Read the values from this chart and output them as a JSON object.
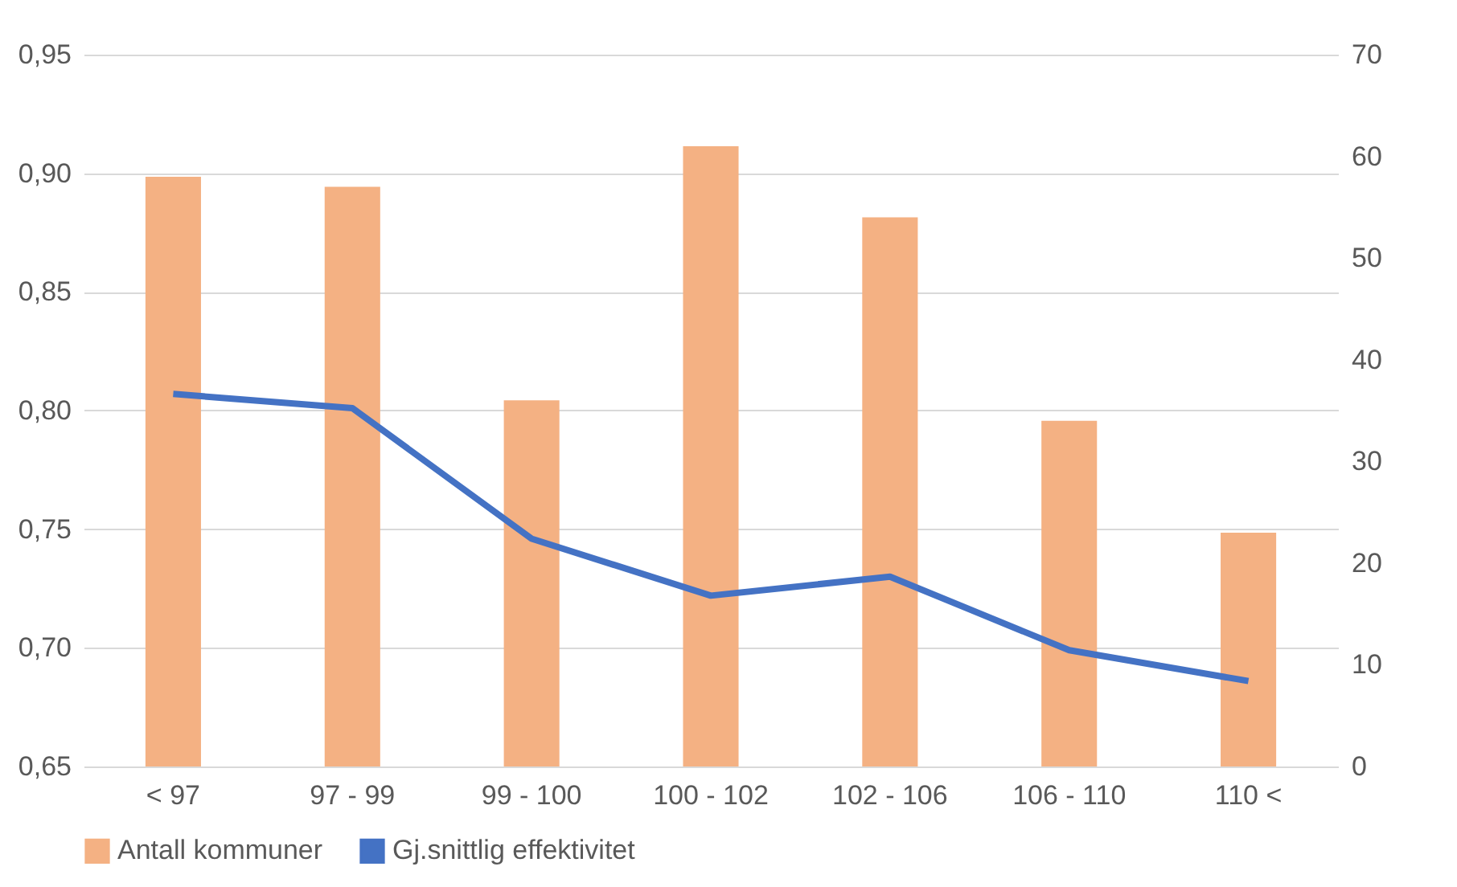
{
  "chart_data": {
    "type": "bar",
    "categories": [
      "< 97",
      "97 - 99",
      "99 - 100",
      "100 - 102",
      "102 - 106",
      "106 - 110",
      "110 <"
    ],
    "series": [
      {
        "name": "Antall kommuner",
        "axis": "y2",
        "color": "#f4b183",
        "values": [
          58,
          57,
          36,
          61,
          54,
          34,
          23
        ]
      },
      {
        "name": "Gj.snittlig effektivitet",
        "type": "line",
        "color": "#4472c4",
        "values": [
          0.807,
          0.801,
          0.746,
          0.722,
          0.73,
          0.699,
          0.686
        ]
      }
    ],
    "ylim": [
      0.65,
      0.95
    ],
    "yticks": [
      {
        "value": 0.65,
        "label": "0,65"
      },
      {
        "value": 0.7,
        "label": "0,70"
      },
      {
        "value": 0.75,
        "label": "0,75"
      },
      {
        "value": 0.8,
        "label": "0,80"
      },
      {
        "value": 0.85,
        "label": "0,85"
      },
      {
        "value": 0.9,
        "label": "0,90"
      },
      {
        "value": 0.95,
        "label": "0,95"
      }
    ],
    "y2lim": [
      0,
      70
    ],
    "y2ticks": [
      0,
      10,
      20,
      30,
      40,
      50,
      60,
      70
    ],
    "grid": "y",
    "legend": "bottom",
    "line_style": "solid",
    "marker": "none"
  }
}
